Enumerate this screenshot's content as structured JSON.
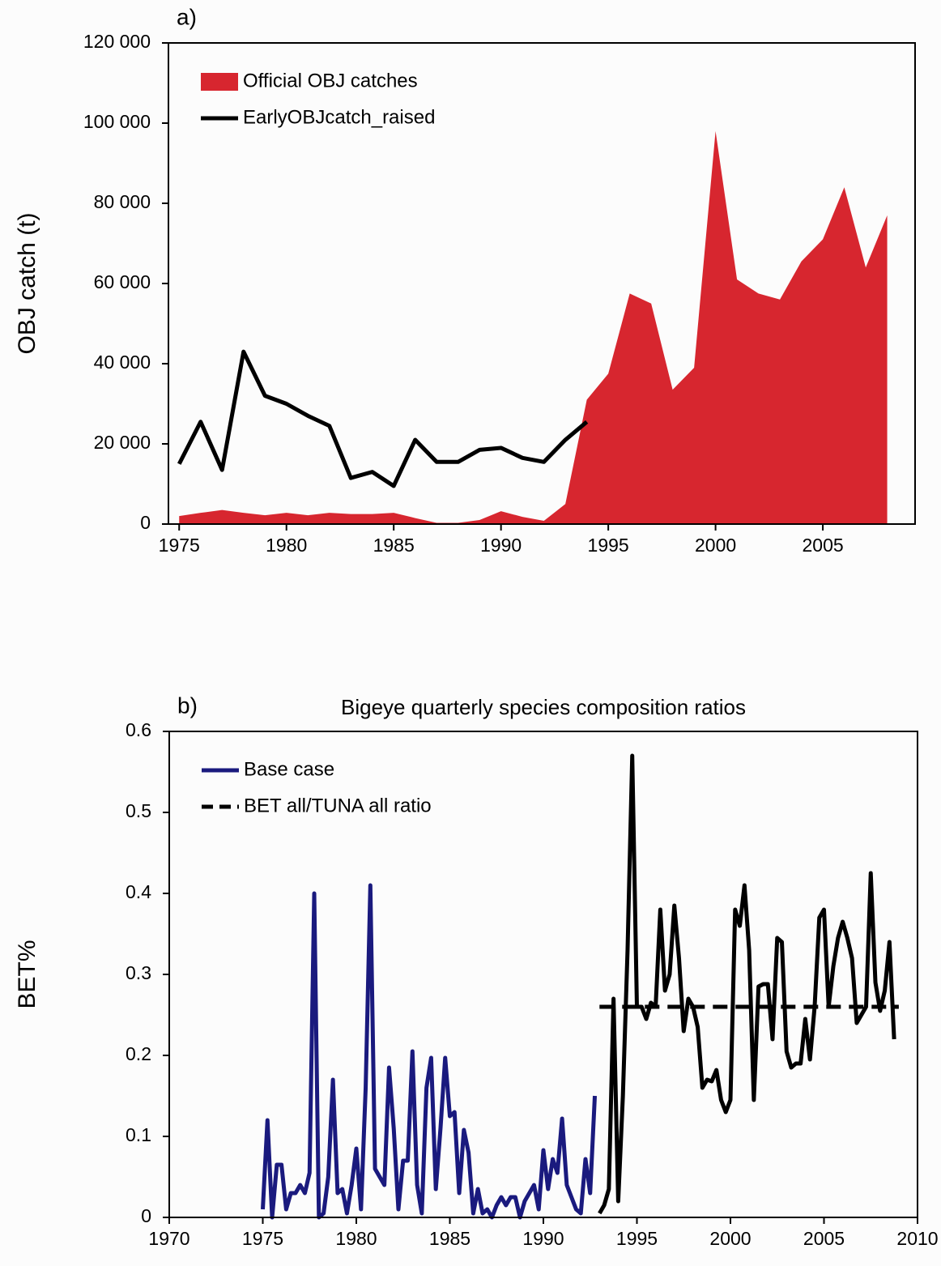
{
  "chart_data": [
    {
      "type": "area",
      "panel_label": "a)",
      "ylabel": "OBJ catch (t)",
      "xlim": [
        1974.5,
        2009.3
      ],
      "xticks": [
        1975,
        1980,
        1985,
        1990,
        1995,
        2000,
        2005
      ],
      "ylim": [
        0,
        120000
      ],
      "yticks": [
        0,
        {
          "value": 20000,
          "label": "20 000"
        },
        {
          "value": 40000,
          "label": "40 000"
        },
        {
          "value": 60000,
          "label": "60 000"
        },
        {
          "value": 80000,
          "label": "80 000"
        },
        {
          "value": 100000,
          "label": "100 000"
        },
        {
          "value": 120000,
          "label": "120 000"
        }
      ],
      "legend": "upper left",
      "series": [
        {
          "name": "Official OBJ catches",
          "type": "area",
          "color": "#d7262f",
          "x": [
            1975,
            1976,
            1977,
            1978,
            1979,
            1980,
            1981,
            1982,
            1983,
            1984,
            1985,
            1986,
            1987,
            1988,
            1989,
            1990,
            1991,
            1992,
            1993,
            1994,
            1995,
            1996,
            1997,
            1998,
            1999,
            2000,
            2001,
            2002,
            2003,
            2004,
            2005,
            2006,
            2007,
            2008
          ],
          "values": [
            2000,
            2800,
            3500,
            2800,
            2200,
            2800,
            2200,
            2800,
            2500,
            2500,
            2800,
            1500,
            300,
            300,
            1000,
            3200,
            1800,
            800,
            5000,
            31000,
            37500,
            57500,
            55000,
            33500,
            39000,
            98000,
            61000,
            57500,
            56000,
            65500,
            71000,
            84000,
            64000,
            77000
          ]
        },
        {
          "name": "EarlyOBJcatch_raised",
          "type": "line",
          "color": "#000000",
          "x": [
            1975,
            1976,
            1977,
            1978,
            1979,
            1980,
            1981,
            1982,
            1983,
            1984,
            1985,
            1986,
            1987,
            1988,
            1989,
            1990,
            1991,
            1992,
            1993,
            1994
          ],
          "values": [
            15000,
            25500,
            13500,
            43000,
            32000,
            30000,
            27000,
            24500,
            11500,
            13000,
            9500,
            21000,
            15500,
            15500,
            18500,
            19000,
            16500,
            15500,
            21000,
            25500
          ]
        }
      ]
    },
    {
      "type": "line",
      "panel_label": "b)",
      "title": "Bigeye quarterly species composition ratios",
      "ylabel": "BET%",
      "xlim": [
        1970,
        2010
      ],
      "xticks": [
        1970,
        1975,
        1980,
        1985,
        1990,
        1995,
        2000,
        2005,
        2010
      ],
      "ylim": [
        0,
        0.6
      ],
      "yticks": [
        0,
        0.1,
        0.2,
        0.3,
        0.4,
        0.5,
        0.6
      ],
      "legend": "upper left",
      "series": [
        {
          "name": "Base case",
          "type": "line",
          "color": "#1a1a7e",
          "x": [
            1975,
            1975.25,
            1975.5,
            1975.75,
            1976,
            1976.25,
            1976.5,
            1976.75,
            1977,
            1977.25,
            1977.5,
            1977.75,
            1978,
            1978.25,
            1978.5,
            1978.75,
            1979,
            1979.25,
            1979.5,
            1979.75,
            1980,
            1980.25,
            1980.5,
            1980.75,
            1981,
            1981.25,
            1981.5,
            1981.75,
            1982,
            1982.25,
            1982.5,
            1982.75,
            1983,
            1983.25,
            1983.5,
            1983.75,
            1984,
            1984.25,
            1984.5,
            1984.75,
            1985,
            1985.25,
            1985.5,
            1985.75,
            1986,
            1986.25,
            1986.5,
            1986.75,
            1987,
            1987.25,
            1987.5,
            1987.75,
            1988,
            1988.25,
            1988.5,
            1988.75,
            1989,
            1989.25,
            1989.5,
            1989.75,
            1990,
            1990.25,
            1990.5,
            1990.75,
            1991,
            1991.25,
            1991.5,
            1991.75,
            1992,
            1992.25,
            1992.5,
            1992.75
          ],
          "values": [
            0.01,
            0.12,
            0.0,
            0.065,
            0.065,
            0.01,
            0.03,
            0.03,
            0.04,
            0.03,
            0.055,
            0.4,
            0.0,
            0.005,
            0.05,
            0.17,
            0.03,
            0.035,
            0.005,
            0.04,
            0.085,
            0.01,
            0.16,
            0.41,
            0.06,
            0.05,
            0.04,
            0.185,
            0.11,
            0.01,
            0.07,
            0.07,
            0.205,
            0.04,
            0.005,
            0.16,
            0.197,
            0.035,
            0.11,
            0.197,
            0.125,
            0.13,
            0.03,
            0.108,
            0.08,
            0.005,
            0.035,
            0.005,
            0.01,
            0.0,
            0.015,
            0.025,
            0.015,
            0.025,
            0.025,
            0.0,
            0.02,
            0.03,
            0.04,
            0.01,
            0.083,
            0.035,
            0.072,
            0.055,
            0.122,
            0.04,
            0.025,
            0.01,
            0.005,
            0.072,
            0.03,
            0.15
          ]
        },
        {
          "type": "line",
          "color": "#000000",
          "x": [
            1993,
            1993.25,
            1993.5,
            1993.75,
            1994,
            1994.25,
            1994.5,
            1994.75,
            1995,
            1995.25,
            1995.5,
            1995.75,
            1996,
            1996.25,
            1996.5,
            1996.75,
            1997,
            1997.25,
            1997.5,
            1997.75,
            1998,
            1998.25,
            1998.5,
            1998.75,
            1999,
            1999.25,
            1999.5,
            1999.75,
            2000,
            2000.25,
            2000.5,
            2000.75,
            2001,
            2001.25,
            2001.5,
            2001.75,
            2002,
            2002.25,
            2002.5,
            2002.75,
            2003,
            2003.25,
            2003.5,
            2003.75,
            2004,
            2004.25,
            2004.5,
            2004.75,
            2005,
            2005.25,
            2005.5,
            2005.75,
            2006,
            2006.25,
            2006.5,
            2006.75,
            2007,
            2007.25,
            2007.5,
            2007.75,
            2008,
            2008.25,
            2008.5,
            2008.75
          ],
          "values": [
            0.005,
            0.015,
            0.035,
            0.27,
            0.02,
            0.15,
            0.33,
            0.57,
            0.26,
            0.26,
            0.245,
            0.265,
            0.26,
            0.38,
            0.28,
            0.3,
            0.385,
            0.32,
            0.23,
            0.27,
            0.26,
            0.235,
            0.16,
            0.17,
            0.168,
            0.182,
            0.145,
            0.13,
            0.145,
            0.38,
            0.36,
            0.41,
            0.33,
            0.145,
            0.285,
            0.288,
            0.288,
            0.22,
            0.345,
            0.34,
            0.205,
            0.185,
            0.19,
            0.19,
            0.245,
            0.195,
            0.26,
            0.37,
            0.38,
            0.26,
            0.31,
            0.345,
            0.365,
            0.345,
            0.32,
            0.24,
            0.25,
            0.26,
            0.425,
            0.29,
            0.255,
            0.28,
            0.34,
            0.22
          ]
        },
        {
          "name": "BET all/TUNA all ratio",
          "type": "line",
          "dash": true,
          "color": "#000000",
          "x": [
            1993,
            2009
          ],
          "values": [
            0.26,
            0.26
          ]
        }
      ]
    }
  ]
}
